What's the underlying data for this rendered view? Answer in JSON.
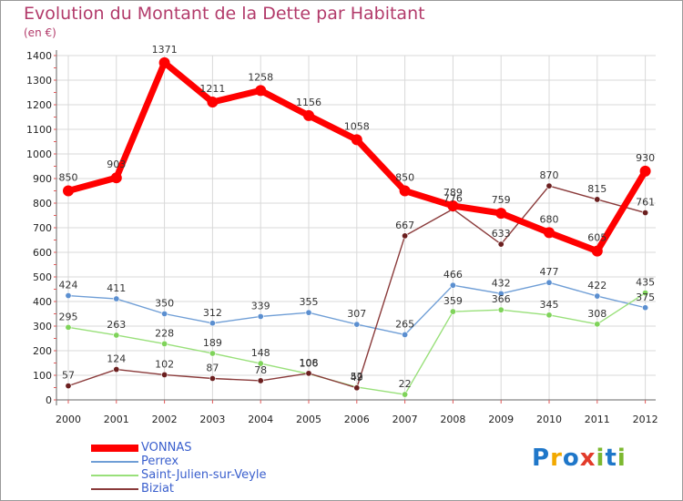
{
  "header": {
    "title": "Evolution du Montant de la Dette par Habitant",
    "subtitle": "(en €)"
  },
  "colors": {
    "title": "#b23a6a",
    "grid": "#d9d9d9",
    "legend_text": "#3a5fcd"
  },
  "logo": {
    "text": "Proxiti",
    "letters": [
      {
        "ch": "P",
        "color": "#1f77c9"
      },
      {
        "ch": "r",
        "color": "#f2a900"
      },
      {
        "ch": "o",
        "color": "#1f77c9"
      },
      {
        "ch": "x",
        "color": "#e23b2a"
      },
      {
        "ch": "i",
        "color": "#7cb82f"
      },
      {
        "ch": "t",
        "color": "#1f77c9"
      },
      {
        "ch": "i",
        "color": "#7cb82f"
      }
    ]
  },
  "chart_data": {
    "type": "line",
    "title": "Evolution du Montant de la Dette par Habitant",
    "subtitle": "(en €)",
    "x": [
      "2000",
      "2001",
      "2002",
      "2003",
      "2004",
      "2005",
      "2006",
      "2007",
      "2008",
      "2009",
      "2010",
      "2011",
      "2012"
    ],
    "ylim": [
      0,
      1400
    ],
    "yticks": [
      0,
      100,
      200,
      300,
      400,
      500,
      600,
      700,
      800,
      900,
      1000,
      1100,
      1200,
      1300,
      1400
    ],
    "grid": true,
    "legend_position": "bottom-left",
    "series": [
      {
        "name": "VONNAS",
        "color": "#ff0000",
        "marker": "#ff0000",
        "width": 7,
        "radius": 6,
        "values": [
          850,
          903,
          1371,
          1211,
          1258,
          1156,
          1058,
          850,
          789,
          759,
          680,
          605,
          930
        ]
      },
      {
        "name": "Perrex",
        "color": "#6f9ed6",
        "marker": "#5b8fd0",
        "width": 1.4,
        "radius": 3.2,
        "values": [
          424,
          411,
          350,
          312,
          339,
          355,
          307,
          265,
          466,
          432,
          477,
          422,
          375
        ]
      },
      {
        "name": "Saint-Julien-sur-Veyle",
        "color": "#99e07a",
        "marker": "#7fd35a",
        "width": 1.4,
        "radius": 3.2,
        "values": [
          295,
          263,
          228,
          189,
          148,
          106,
          52,
          22,
          359,
          366,
          345,
          308,
          435
        ]
      },
      {
        "name": "Biziat",
        "color": "#8a3a3a",
        "marker": "#6b1f1f",
        "width": 1.4,
        "radius": 3.2,
        "values": [
          57,
          124,
          102,
          87,
          78,
          108,
          49,
          667,
          776,
          633,
          870,
          815,
          761
        ]
      }
    ],
    "point_labels": [
      [
        "850",
        "903",
        "1371",
        "1211",
        "1258",
        "1156",
        "1058",
        "850",
        "789",
        "759",
        "680",
        "605",
        "930"
      ],
      [
        "424",
        "411",
        "350",
        "312",
        "339",
        "355",
        "307",
        "265",
        "466",
        "432",
        "477",
        "422",
        "375"
      ],
      [
        "295",
        "263",
        "228",
        "189",
        "148",
        "106",
        "52",
        "22",
        "359",
        "366",
        "345",
        "308",
        "435"
      ],
      [
        "57",
        "124",
        "102",
        "87",
        "78",
        "108",
        "49",
        "667",
        "776",
        "633",
        "870",
        "815",
        "761"
      ]
    ]
  }
}
